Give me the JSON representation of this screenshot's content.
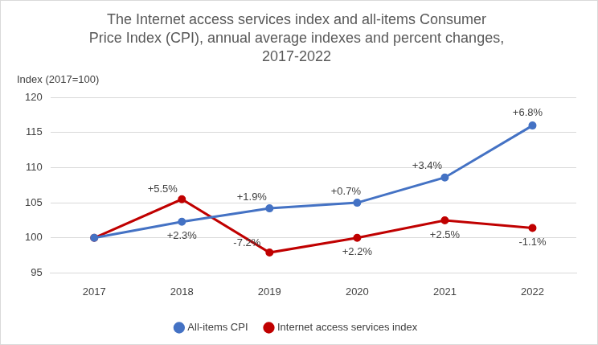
{
  "chart_data": {
    "type": "line",
    "title": [
      "The Internet access services index and all-items Consumer",
      "Price Index (CPI), annual average indexes and percent changes,",
      "2017-2022"
    ],
    "y_label": "Index (2017=100)",
    "categories": [
      "2017",
      "2018",
      "2019",
      "2020",
      "2021",
      "2022"
    ],
    "series": [
      {
        "name": "All-items CPI",
        "color": "#4472C4",
        "marker": "circle",
        "values": [
          100.0,
          102.3,
          104.2,
          105.0,
          108.6,
          116.0
        ],
        "annotations": [
          null,
          "+2.3%",
          "+1.9%",
          "+0.7%",
          "+3.4%",
          "+6.8%"
        ]
      },
      {
        "name": "Internet access services index",
        "color": "#C00000",
        "marker": "circle",
        "values": [
          100.0,
          105.5,
          97.9,
          100.0,
          102.5,
          101.4
        ],
        "annotations": [
          null,
          "+5.5%",
          "-7.2%",
          "+2.2%",
          "+2.5%",
          "-1.1%"
        ]
      }
    ],
    "ylim": [
      95,
      120
    ],
    "yticks": [
      95,
      100,
      105,
      110,
      115,
      120
    ],
    "grid": true,
    "legend": "bottom"
  }
}
